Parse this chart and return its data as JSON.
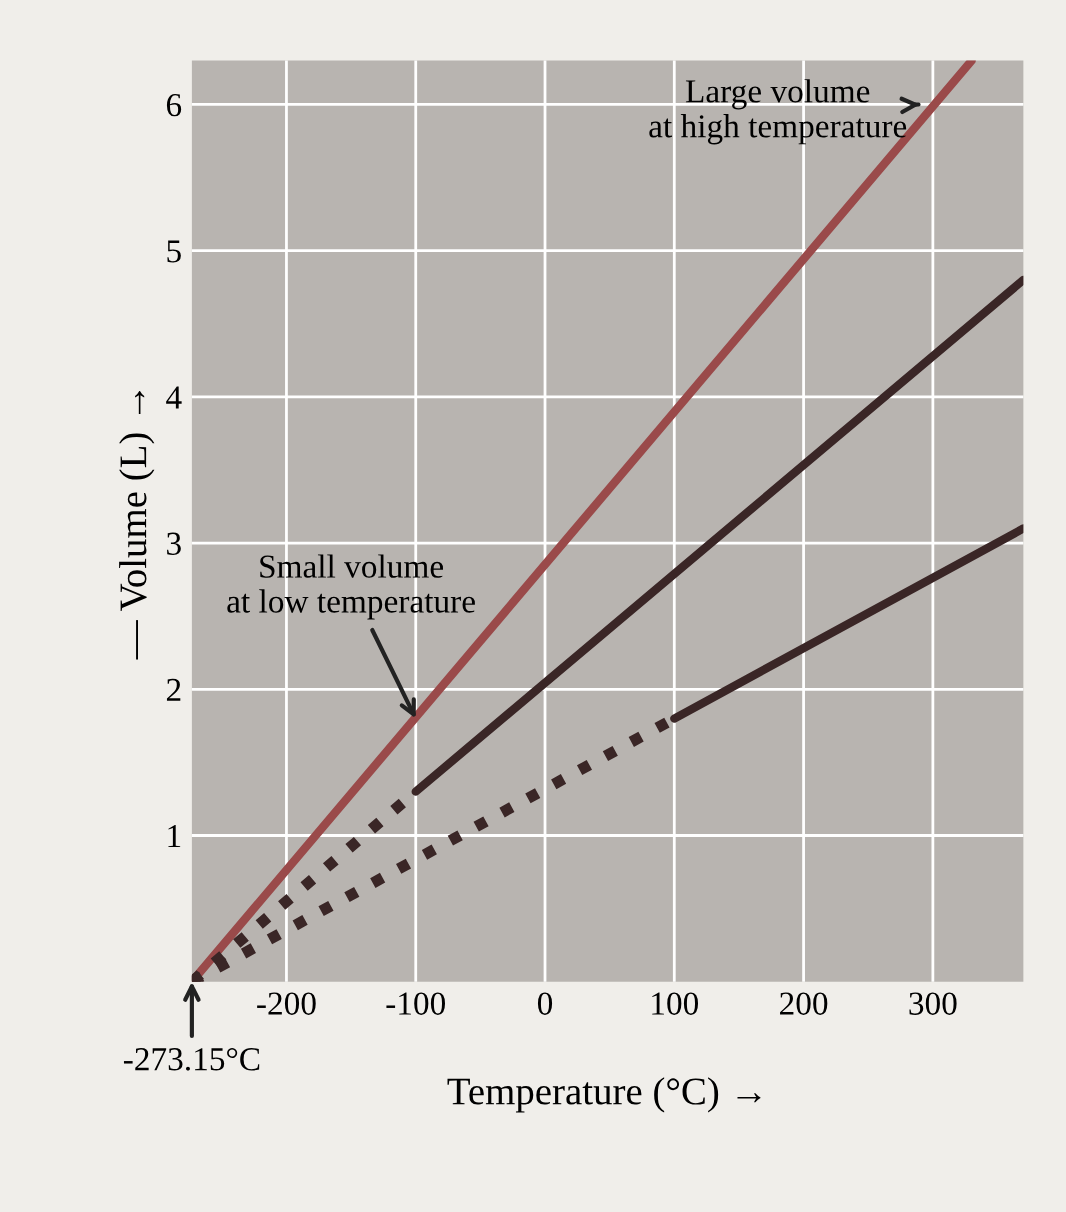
{
  "chart_data": {
    "type": "line",
    "xlabel": "Temperature (°C) →",
    "ylabel": "— Volume (L) →",
    "xlim": [
      -273.15,
      370
    ],
    "ylim": [
      0,
      6.3
    ],
    "xticks": [
      -200,
      -100,
      0,
      100,
      200,
      300
    ],
    "yticks": [
      1,
      2,
      3,
      4,
      5,
      6
    ],
    "grid": true,
    "series": [
      {
        "color": "#9a4a4a",
        "x": [
          -273.15,
          330
        ],
        "values": [
          0,
          6.3
        ],
        "line_style": "solid"
      },
      {
        "color": "#3a2626",
        "x": [
          -273.15,
          -100
        ],
        "values": [
          0,
          1.3
        ],
        "line_style": "dotted"
      },
      {
        "color": "#3a2626",
        "x": [
          -100,
          370
        ],
        "values": [
          1.3,
          4.8
        ],
        "line_style": "solid"
      },
      {
        "color": "#3a2626",
        "x": [
          -273.15,
          100
        ],
        "values": [
          0,
          1.8
        ],
        "line_style": "dotted"
      },
      {
        "color": "#3a2626",
        "x": [
          100,
          370
        ],
        "values": [
          1.8,
          3.1
        ],
        "line_style": "solid"
      }
    ],
    "annotations": [
      {
        "text": "Large volume\nat high temperature",
        "x": 290,
        "y": 6.0
      },
      {
        "text": "Small volume\nat low temperature",
        "x": -100,
        "y": 1.8
      },
      {
        "text": "-273.15°C",
        "x": -273.15,
        "y": 0
      }
    ]
  }
}
